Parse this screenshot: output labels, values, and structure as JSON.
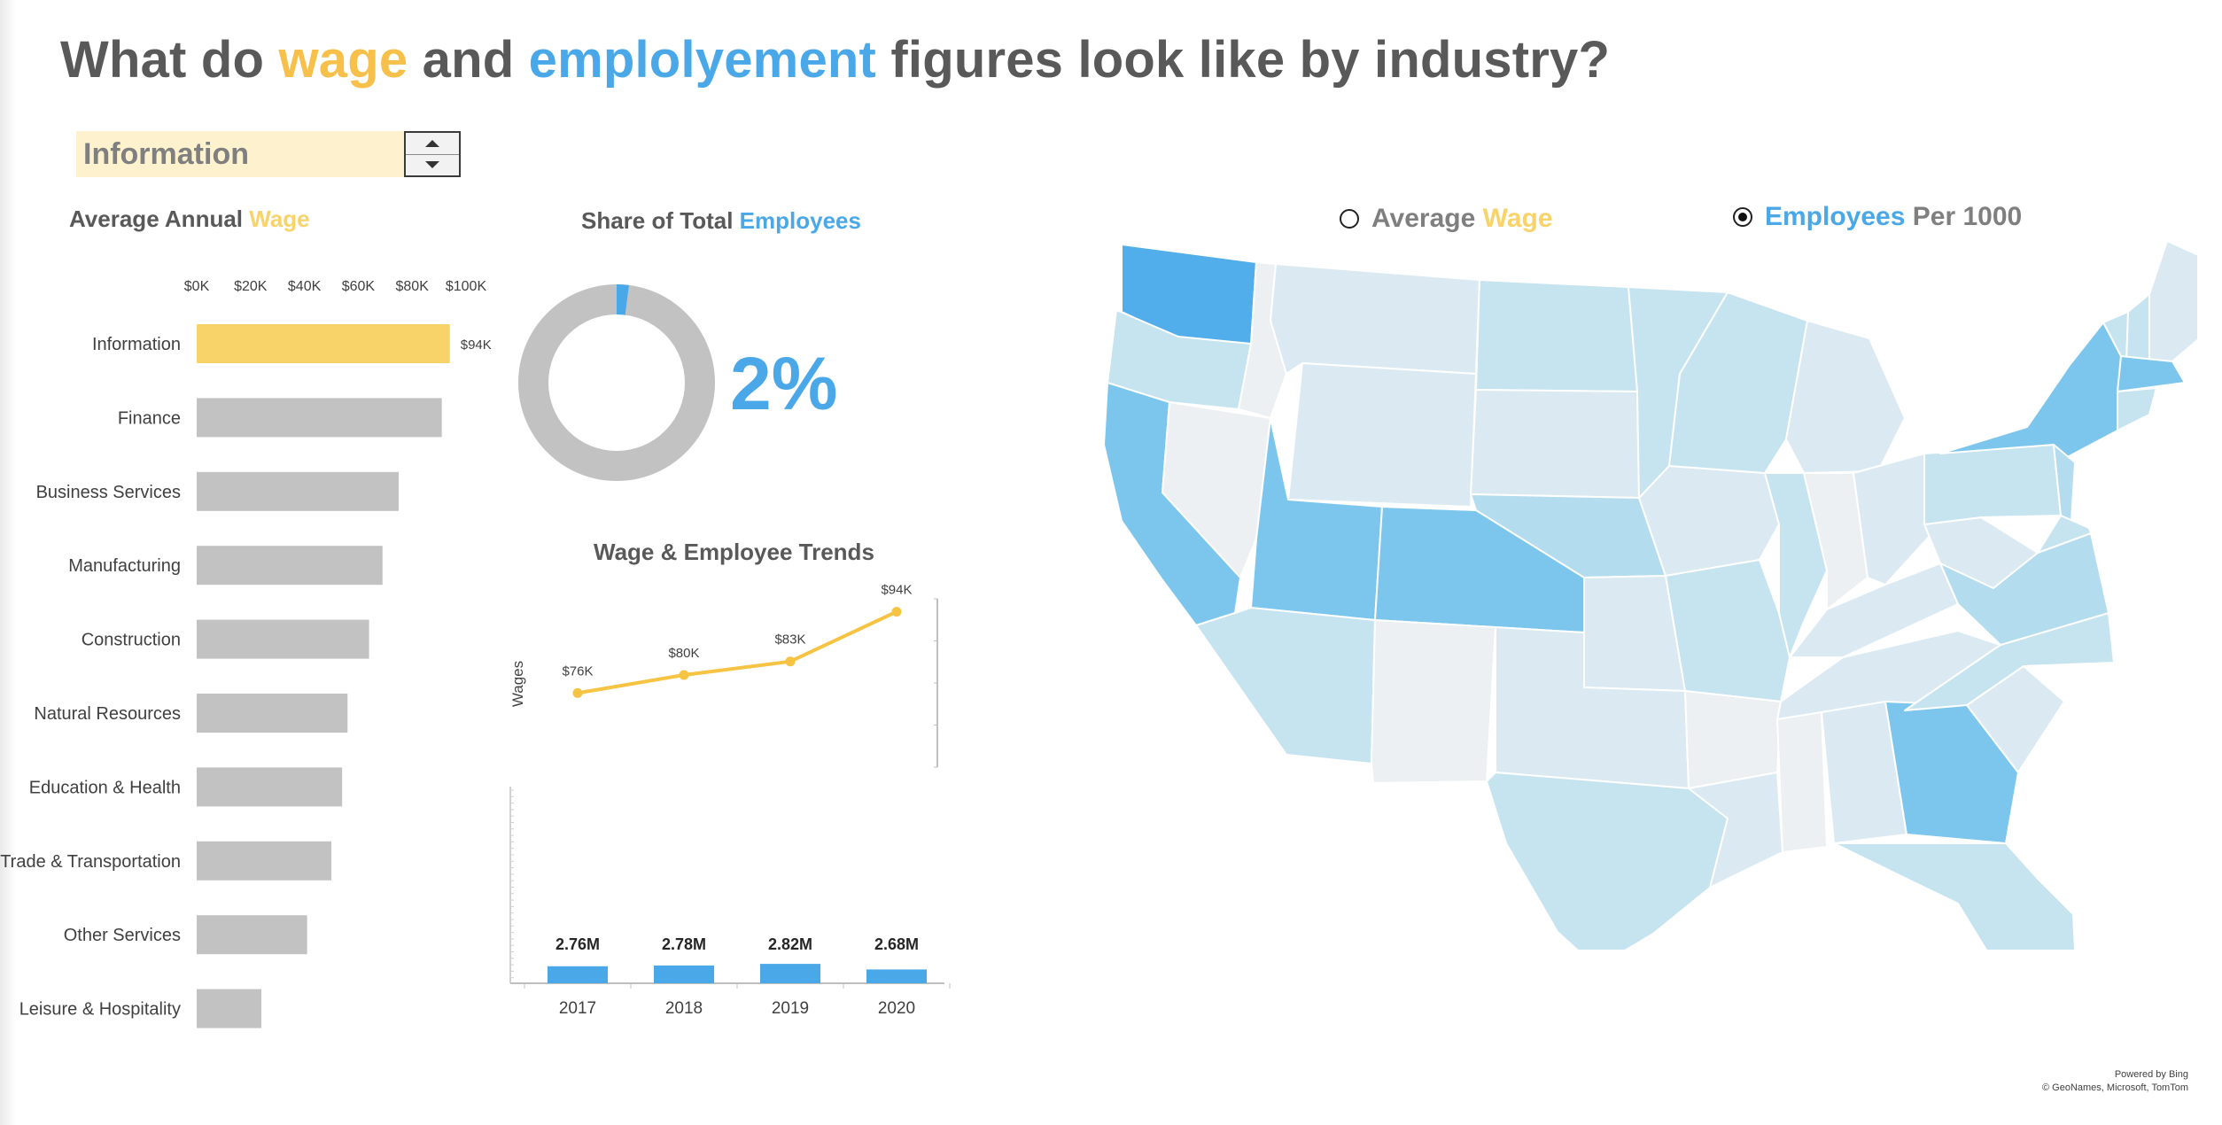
{
  "title": {
    "p1": "What do ",
    "wage": "wage",
    "p2": " and ",
    "emp": "emplolyement",
    "p3": " figures look like by industry?"
  },
  "selector": {
    "value": "Information"
  },
  "bar_heading": {
    "p1": "Average Annual ",
    "p2": "Wage"
  },
  "donut_heading": {
    "p1": "Share of Total ",
    "p2": "Employees"
  },
  "donut_value": "2%",
  "trend_heading": "Wage & Employee Trends",
  "map_toggle": {
    "wage": {
      "p1": "Average ",
      "p2": "Wage",
      "selected": false
    },
    "emp": {
      "p1": "Employees",
      "p2": " Per 1000",
      "selected": true
    }
  },
  "attribution": {
    "line1": "Powered by Bing",
    "line2": "© GeoNames, Microsoft, TomTom"
  },
  "colors": {
    "wage": "#f7d36a",
    "employees": "#4aa8e8",
    "bar_gray": "#c2c2c2",
    "text": "#595959"
  },
  "icons": [
    "spin-up-icon",
    "spin-down-icon",
    "radio-icon"
  ],
  "chart_data": [
    {
      "type": "bar",
      "orientation": "horizontal",
      "title": "Average Annual Wage",
      "xlim": [
        0,
        100000
      ],
      "x_ticks": [
        "$0K",
        "$20K",
        "$40K",
        "$60K",
        "$80K",
        "$100K"
      ],
      "categories": [
        "Information",
        "Finance",
        "Business Services",
        "Manufacturing",
        "Construction",
        "Natural Resources",
        "Education & Health",
        "Trade & Transportation",
        "Other Services",
        "Leisure & Hospitality"
      ],
      "values": [
        94000,
        91000,
        75000,
        69000,
        64000,
        56000,
        54000,
        50000,
        41000,
        24000
      ],
      "highlight": "Information",
      "data_labels": {
        "Information": "$94K"
      }
    },
    {
      "type": "pie",
      "title": "Share of Total Employees",
      "donut": true,
      "slices": [
        {
          "label": "Information",
          "value": 2
        },
        {
          "label": "Other",
          "value": 98
        }
      ]
    },
    {
      "type": "line",
      "title": "Wage & Employee Trends",
      "ylabel": "Wages",
      "x": [
        "2017",
        "2018",
        "2019",
        "2020"
      ],
      "values": [
        76000,
        80000,
        83000,
        94000
      ],
      "labels": [
        "$76K",
        "$80K",
        "$83K",
        "$94K"
      ]
    },
    {
      "type": "bar",
      "x": [
        "2017",
        "2018",
        "2019",
        "2020"
      ],
      "values": [
        2.76,
        2.78,
        2.82,
        2.68
      ],
      "labels": [
        "2.76M",
        "2.78M",
        "2.82M",
        "2.68M"
      ]
    },
    {
      "type": "heatmap",
      "subtype": "choropleth",
      "region": "United States",
      "measure": "Employees Per 1000",
      "highest": [
        "Washington",
        "California",
        "Colorado",
        "New York",
        "Massachusetts",
        "Georgia",
        "Utah"
      ]
    }
  ]
}
